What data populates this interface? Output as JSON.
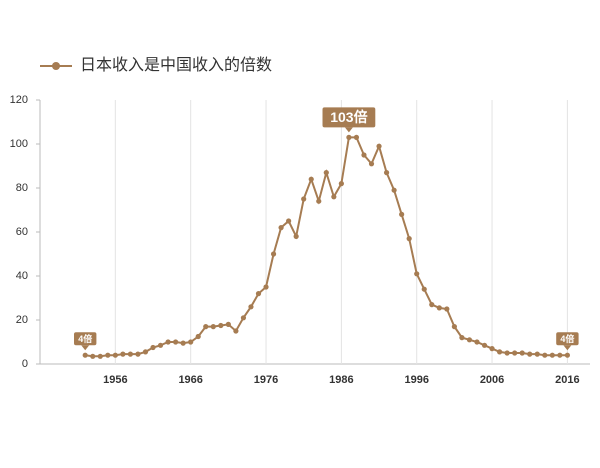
{
  "chart_data": {
    "type": "line",
    "series": [
      {
        "name": "日本收入是中国收入的倍数",
        "color": "#a67c52",
        "values": [
          4,
          3.5,
          3.5,
          4,
          4,
          4.5,
          4.5,
          4.5,
          5.5,
          7.5,
          8.5,
          10,
          10,
          9.5,
          10,
          12.5,
          17,
          17,
          17.5,
          18,
          15,
          21,
          26,
          32,
          35,
          50,
          62,
          65,
          58,
          75,
          84,
          74,
          87,
          76,
          82,
          103,
          103,
          95,
          91,
          99,
          87,
          79,
          68,
          57,
          41,
          34,
          27,
          25.5,
          25,
          17,
          12,
          11,
          10,
          8.5,
          7,
          5.5,
          5,
          5,
          5,
          4.5,
          4.5,
          4,
          4,
          4,
          4
        ],
        "value_labels": [
          "4倍",
          null,
          null,
          null,
          null,
          null,
          null,
          null,
          null,
          null,
          null,
          null,
          null,
          null,
          null,
          null,
          null,
          null,
          null,
          null,
          null,
          null,
          null,
          null,
          null,
          null,
          null,
          null,
          null,
          null,
          null,
          null,
          null,
          null,
          null,
          "103倍",
          null,
          null,
          null,
          null,
          null,
          null,
          null,
          null,
          null,
          null,
          null,
          null,
          null,
          null,
          null,
          null,
          null,
          null,
          null,
          null,
          null,
          null,
          null,
          null,
          null,
          null,
          null,
          null,
          "4倍"
        ]
      }
    ],
    "x": [
      1952,
      1953,
      1954,
      1955,
      1956,
      1957,
      1958,
      1959,
      1960,
      1961,
      1962,
      1963,
      1964,
      1965,
      1966,
      1967,
      1968,
      1969,
      1970,
      1971,
      1972,
      1973,
      1974,
      1975,
      1976,
      1977,
      1978,
      1979,
      1980,
      1981,
      1982,
      1983,
      1984,
      1985,
      1986,
      1987,
      1988,
      1989,
      1990,
      1991,
      1992,
      1993,
      1994,
      1995,
      1996,
      1997,
      1998,
      1999,
      2000,
      2001,
      2002,
      2003,
      2004,
      2005,
      2006,
      2007,
      2008,
      2009,
      2010,
      2011,
      2012,
      2013,
      2014,
      2015,
      2016
    ],
    "xlim": [
      1946,
      2019
    ],
    "xticks": [
      1956,
      1966,
      1976,
      1986,
      1996,
      2006,
      2016
    ],
    "ylim": [
      0,
      120
    ],
    "yticks": [
      0,
      20,
      40,
      60,
      80,
      100,
      120
    ],
    "grid": true
  }
}
